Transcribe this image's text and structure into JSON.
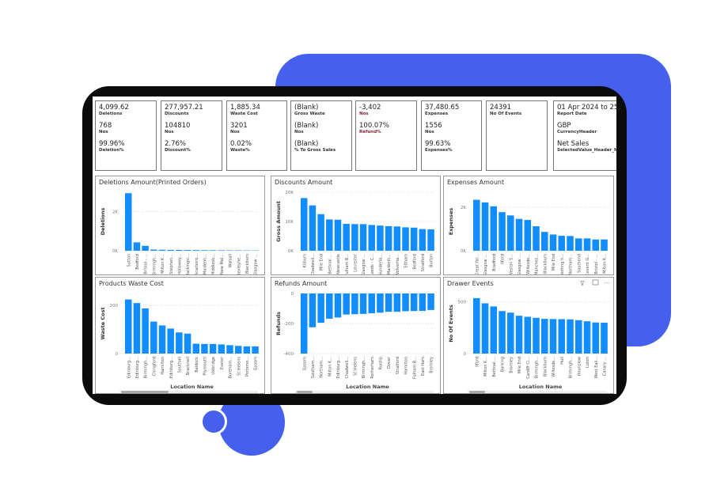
{
  "cards": [
    {
      "items": [
        {
          "value": "4,099.62",
          "label": "Deletions"
        },
        {
          "value": "768",
          "label": "Nos"
        },
        {
          "value": "99.96%",
          "label": "Deletion%"
        }
      ]
    },
    {
      "items": [
        {
          "value": "277,957.21",
          "label": "Discounts"
        },
        {
          "value": "104810",
          "label": "Nos"
        },
        {
          "value": "2.76%",
          "label": "Discount%"
        }
      ]
    },
    {
      "items": [
        {
          "value": "1,885.34",
          "label": "Waste Cost"
        },
        {
          "value": "3201",
          "label": "Nos"
        },
        {
          "value": "0.02%",
          "label": "Waste%"
        }
      ]
    },
    {
      "items": [
        {
          "value": "(Blank)",
          "label": "Gross Waste"
        },
        {
          "value": "(Blank)",
          "label": "Nos"
        },
        {
          "value": "(Blank)",
          "label": "% To Gross Sales"
        }
      ]
    },
    {
      "items": [
        {
          "value": "-3,402",
          "label": "Nos"
        },
        {
          "value": "100.07%",
          "label": "Refund%"
        }
      ]
    },
    {
      "items": [
        {
          "value": "37,480.65",
          "label": "Expenses"
        },
        {
          "value": "1556",
          "label": "Nos"
        },
        {
          "value": "99.63%",
          "label": "Expenses%"
        }
      ]
    },
    {
      "items": [
        {
          "value": "24391",
          "label": "No Of Events"
        }
      ]
    },
    {
      "items": [
        {
          "value": "01 Apr 2024 to 25...",
          "label": "Report Date"
        },
        {
          "value": "GBP",
          "label": "CurrencyHeader"
        },
        {
          "value": "Net Sales",
          "label": "SelectedValue_Header_N..."
        }
      ]
    }
  ],
  "colors": {
    "bar": "#118dff",
    "accent": "#4460ec"
  },
  "chart_data": [
    {
      "type": "bar",
      "title": "Deletions Amount(Printed Orders)",
      "ylabel": "Deletions",
      "xlabel": "",
      "ylim": [
        0,
        3000
      ],
      "yticks": [
        0,
        2000
      ],
      "ytick_labels": [
        "0K",
        "2K"
      ],
      "categories": [
        "Sutton",
        "Bedford",
        "Bristol - ...",
        "Birmingh...",
        "Milton K...",
        "Stephen...",
        "Holloway...",
        "Barkingsi...",
        "Scarboro...",
        "Maidenh...",
        "Middlesb...",
        "New Mal...",
        "Walsall",
        "Bexleyhe...",
        "Blackburn",
        "Glasgow ..."
      ],
      "values": [
        2950,
        430,
        250,
        60,
        52,
        46,
        40,
        38,
        35,
        30,
        28,
        25,
        22,
        20,
        18,
        15
      ]
    },
    {
      "type": "bar",
      "title": "Discounts Amount",
      "ylabel": "Gross Amount",
      "xlabel": "",
      "ylim": [
        0,
        20000
      ],
      "yticks": [
        0,
        10000,
        20000
      ],
      "ytick_labels": [
        "0K",
        "10K",
        "20K"
      ],
      "categories": [
        "Kilburn",
        "Chadwell...",
        "Mile End",
        "Bethnal ...",
        "Newcastle",
        "Fulham B...",
        "Leicester",
        "Glasgow ...",
        "Leeds - C...",
        "Sunderla...",
        "Maidenh...",
        "Wolverha...",
        "Eltham",
        "Bedford",
        "Stratford",
        "Burton"
      ],
      "values": [
        18000,
        15500,
        12500,
        10700,
        10600,
        9200,
        9100,
        9100,
        8800,
        8600,
        8400,
        8300,
        8000,
        7900,
        7400,
        7300
      ]
    },
    {
      "type": "bar",
      "title": "Expenses Amount",
      "ylabel": "Expenses",
      "xlabel": "",
      "ylim": [
        0,
        2700
      ],
      "yticks": [
        0,
        2000
      ],
      "ytick_labels": [
        "0K",
        "2K"
      ],
      "categories": [
        "Great Yar...",
        "Glasgow ...",
        "Bradford",
        "Ilford",
        "Weston S...",
        "Glasgow ...",
        "Willesde...",
        "Manches...",
        "Blackburn",
        "Mile End",
        "Notting h...",
        "Northam...",
        "Southend",
        "Covent G...",
        "Bristol - ...",
        "Milton K..."
      ],
      "values": [
        2350,
        2230,
        2050,
        1780,
        1630,
        1470,
        1420,
        1130,
        870,
        750,
        690,
        680,
        570,
        570,
        520,
        520
      ]
    },
    {
      "type": "bar",
      "title": "Products Waste Cost",
      "ylabel": "Waste Cost",
      "xlabel": "Location Name",
      "ylim": [
        0,
        250
      ],
      "yticks": [
        0,
        200
      ],
      "ytick_labels": [
        "0",
        "200"
      ],
      "categories": [
        "Edinburg...",
        "Edinburg...",
        "Birmingh...",
        "Chingford",
        "Hamilton",
        "Edinburg...",
        "Southall",
        "Bracknell",
        "Baldock",
        "Plymouth",
        "Uxbridge",
        "Exeter",
        "Boreham...",
        "St Helens",
        "Portsmo...",
        "Epsom"
      ],
      "values": [
        225,
        210,
        188,
        133,
        117,
        104,
        88,
        83,
        41,
        40,
        40,
        38,
        35,
        32,
        30,
        30
      ]
    },
    {
      "type": "bar",
      "title": "Refunds Amount",
      "ylabel": "Refunds",
      "xlabel": "Location Name",
      "ylim": [
        -400,
        0
      ],
      "yticks": [
        0,
        -200,
        -400
      ],
      "ytick_labels": [
        "0",
        "-200",
        "-400"
      ],
      "categories": [
        "Epsom",
        "Southam...",
        "Northam...",
        "Milton K...",
        "Edinburg...",
        "Chadwell...",
        "St Helens",
        "Birmingh...",
        "Rotherham",
        "Ruislip",
        "Dover",
        "Stratford",
        "Hamilton",
        "Fulham B...",
        "East Ham",
        "Bromley"
      ],
      "values": [
        -400,
        -225,
        -195,
        -168,
        -160,
        -140,
        -138,
        -136,
        -132,
        -128,
        -122,
        -122,
        -118,
        -117,
        -116,
        -110
      ]
    },
    {
      "type": "bar",
      "title": "Drawer Events",
      "ylabel": "No Of Events",
      "xlabel": "Location Name",
      "ylim": [
        0,
        580
      ],
      "yticks": [
        0,
        500
      ],
      "ytick_labels": [
        "0",
        "500"
      ],
      "categories": [
        "Ilford",
        "Milton K...",
        "Bethnal ...",
        "Barking",
        "Bromley",
        "Mile End",
        "Cardiff Ci...",
        "Birmingh...",
        "Blackburn",
        "Willesde...",
        "Hull",
        "Birmingh...",
        "Hounslow",
        "Luton",
        "West Eali...",
        "Canary ..."
      ],
      "values": [
        535,
        485,
        455,
        410,
        395,
        365,
        355,
        345,
        335,
        333,
        332,
        330,
        322,
        312,
        300,
        298
      ]
    }
  ]
}
